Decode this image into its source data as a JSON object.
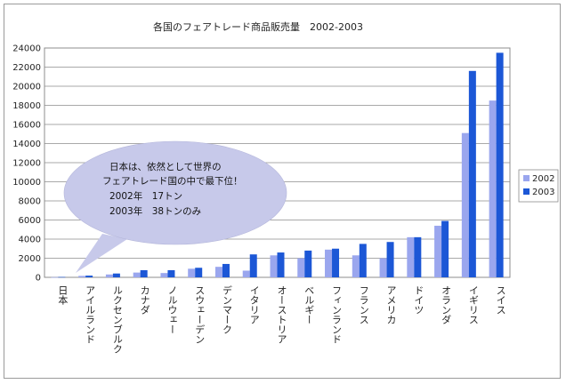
{
  "chart_data": {
    "type": "bar",
    "title": "各国のフェアトレード商品販売量　2002-2003",
    "categories": [
      "日本",
      "アイルランド",
      "ルクセンブルク",
      "カナダ",
      "ノルウェー",
      "スウェーデン",
      "デンマーク",
      "イタリア",
      "オーストリア",
      "ベルギー",
      "フィンランド",
      "フランス",
      "アメリカ",
      "ドイツ",
      "オランダ",
      "イギリス",
      "スイス"
    ],
    "series": [
      {
        "name": "2002",
        "color": "#9aa6ee",
        "values": [
          17,
          150,
          300,
          500,
          450,
          900,
          1100,
          700,
          2300,
          2000,
          2900,
          2300,
          2000,
          4200,
          5400,
          15100,
          18500
        ]
      },
      {
        "name": "2003",
        "color": "#1c57d6",
        "values": [
          38,
          180,
          400,
          750,
          750,
          1000,
          1400,
          2400,
          2600,
          2800,
          3000,
          3500,
          3700,
          4200,
          5900,
          21600,
          23500
        ]
      }
    ],
    "ylim": [
      0,
      24000
    ],
    "yticks": [
      0,
      2000,
      4000,
      6000,
      8000,
      10000,
      12000,
      14000,
      16000,
      18000,
      20000,
      22000,
      24000
    ],
    "grid": true,
    "legend_position": "right",
    "annotation": {
      "lines": [
        "日本は、依然として世界の",
        "フェアトレード国の中で最下位！",
        "2002年　17トン",
        "2003年　38トンのみ"
      ]
    }
  }
}
